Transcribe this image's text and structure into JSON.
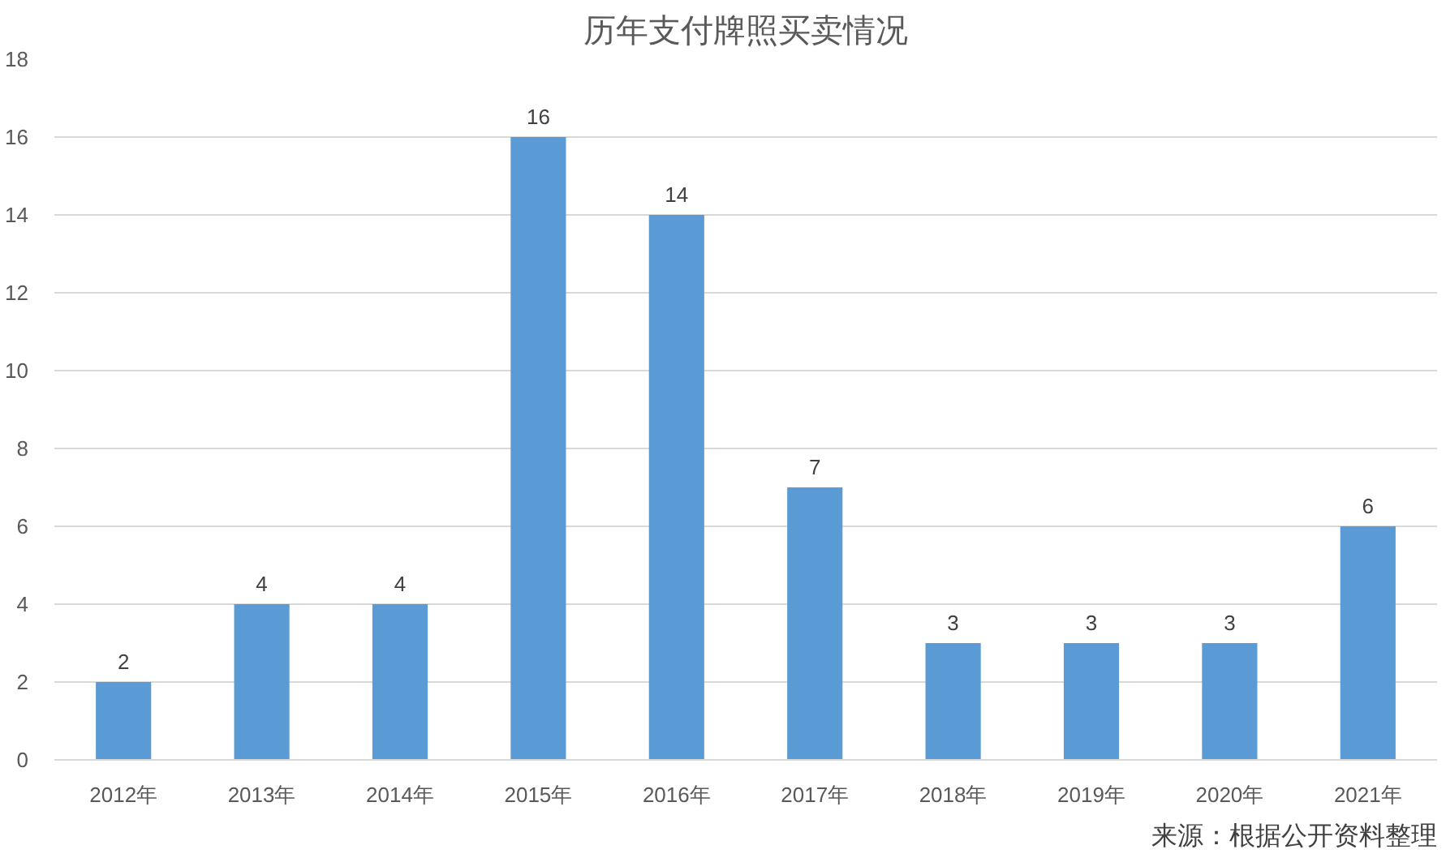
{
  "chart_data": {
    "type": "bar",
    "title": "历年支付牌照买卖情况",
    "categories": [
      "2012年",
      "2013年",
      "2014年",
      "2015年",
      "2016年",
      "2017年",
      "2018年",
      "2019年",
      "2020年",
      "2021年"
    ],
    "values": [
      2,
      4,
      4,
      16,
      14,
      7,
      3,
      3,
      3,
      6
    ],
    "color": "#5b9bd5",
    "ylim": [
      0,
      18
    ],
    "yticks": [
      0,
      2,
      4,
      6,
      8,
      10,
      12,
      14,
      16,
      18
    ],
    "grid": "y",
    "data_labels": true,
    "annotations": [
      "来源：根据公开资料整理"
    ]
  }
}
